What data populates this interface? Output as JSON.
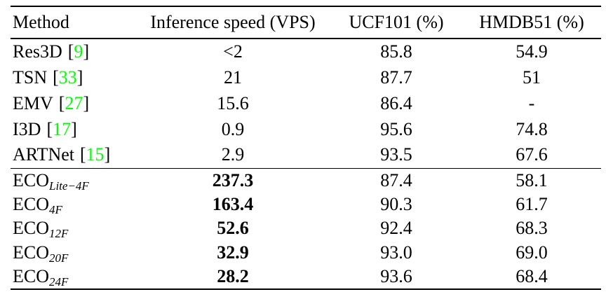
{
  "colors": {
    "citation_green": "#00ff00",
    "text": "#000000",
    "background": "#ffffff"
  },
  "punct": {
    "open_bracket": "[",
    "close_bracket": "]"
  },
  "header": {
    "method": "Method",
    "speed": "Inference speed (VPS)",
    "ucf": "UCF101 (%)",
    "hmdb": "HMDB51 (%)"
  },
  "rows": [
    {
      "method": "Res3D",
      "cite": "9",
      "speed": "<2",
      "ucf": "85.8",
      "hmdb": "54.9"
    },
    {
      "method": "TSN",
      "cite": "33",
      "speed": "21",
      "ucf": "87.7",
      "hmdb": "51"
    },
    {
      "method": "EMV",
      "cite": "27",
      "speed": "15.6",
      "ucf": "86.4",
      "hmdb": "-"
    },
    {
      "method": "I3D",
      "cite": "17",
      "speed": "0.9",
      "ucf": "95.6",
      "hmdb": "74.8"
    },
    {
      "method": "ARTNet",
      "cite": "15",
      "speed": "2.9",
      "ucf": "93.5",
      "hmdb": "67.6"
    },
    {
      "method_base": "ECO",
      "method_sub": "Lite−4F",
      "speed": "237.3",
      "ucf": "87.4",
      "hmdb": "58.1"
    },
    {
      "method_base": "ECO",
      "method_sub": "4F",
      "speed": "163.4",
      "ucf": "90.3",
      "hmdb": "61.7"
    },
    {
      "method_base": "ECO",
      "method_sub": "12F",
      "speed": "52.6",
      "ucf": "92.4",
      "hmdb": "68.3"
    },
    {
      "method_base": "ECO",
      "method_sub": "20F",
      "speed": "32.9",
      "ucf": "93.0",
      "hmdb": "69.0"
    },
    {
      "method_base": "ECO",
      "method_sub": "24F",
      "speed": "28.2",
      "ucf": "93.6",
      "hmdb": "68.4"
    }
  ]
}
